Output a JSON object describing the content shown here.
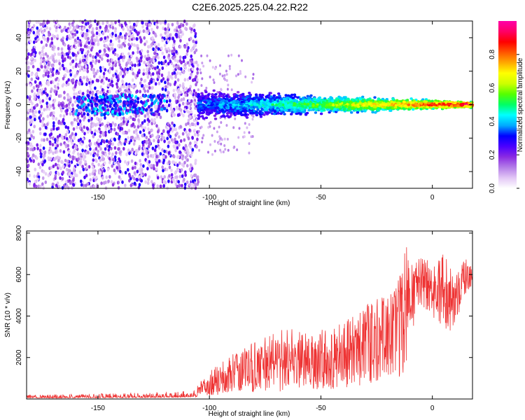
{
  "title": "C2E6.2025.225.04.22.R22",
  "chart_data": [
    {
      "type": "heatmap",
      "xlabel": "Height of straight line (km)",
      "ylabel": "Frequency (Hz)",
      "xlim": [
        -182,
        18
      ],
      "ylim": [
        -50,
        50
      ],
      "xticks": [
        -150,
        -100,
        -50,
        0
      ],
      "yticks": [
        -40,
        -20,
        0,
        20,
        40
      ],
      "grid": false,
      "colorbar": {
        "label": "Normalized spectral amplitude",
        "range": [
          0,
          1
        ],
        "ticks": [
          "0.0",
          "0.2",
          "0.4",
          "0.6",
          "0.8"
        ],
        "colors": [
          "#ffffff",
          "#e2c6f5",
          "#b47de8",
          "#8a2be2",
          "#4b00ff",
          "#0000ff",
          "#00aaff",
          "#00ffff",
          "#00ff66",
          "#55ff00",
          "#ccff00",
          "#ffff00",
          "#ffaa00",
          "#ff5500",
          "#ff0000",
          "#ff0066",
          "#ff00aa"
        ]
      },
      "regions": [
        {
          "name": "scattered noise",
          "x": [
            -182,
            -105
          ],
          "y": [
            -50,
            50
          ],
          "amplitude": [
            0.05,
            0.3
          ]
        },
        {
          "name": "weak band",
          "x": [
            -160,
            -120
          ],
          "y": [
            -6,
            6
          ],
          "amplitude": [
            0.2,
            0.45
          ]
        },
        {
          "name": "signal band",
          "x": [
            -105,
            18
          ],
          "y_center": 0,
          "halfwidth_start": 8,
          "halfwidth_end": 1.5,
          "amplitude_start": 0.35,
          "amplitude_end": 0.98
        }
      ]
    },
    {
      "type": "line",
      "xlabel": "Height of straight line (km)",
      "ylabel": "SNR (10 * v/v)",
      "xlim": [
        -182,
        18
      ],
      "ylim": [
        0,
        8100
      ],
      "xticks": [
        -150,
        -100,
        -50,
        0
      ],
      "yticks": [
        2000,
        4000,
        6000,
        8000
      ],
      "grid": false,
      "series": [
        {
          "color": "#ee3333",
          "envelope_x": [
            -182,
            -150,
            -120,
            -106,
            -105,
            -95,
            -85,
            -75,
            -65,
            -55,
            -45,
            -35,
            -25,
            -15,
            -11,
            -10,
            -5,
            0,
            5,
            10,
            15,
            18
          ],
          "envelope_low": [
            50,
            60,
            70,
            100,
            150,
            200,
            250,
            300,
            350,
            400,
            450,
            600,
            800,
            1000,
            1500,
            3000,
            4500,
            4000,
            3000,
            3500,
            5000,
            5500
          ],
          "envelope_high": [
            200,
            250,
            350,
            400,
            800,
            1800,
            2500,
            3000,
            3500,
            3200,
            3500,
            4000,
            5000,
            5800,
            8100,
            6500,
            7000,
            6500,
            7200,
            6000,
            6800,
            6300
          ]
        }
      ]
    }
  ]
}
